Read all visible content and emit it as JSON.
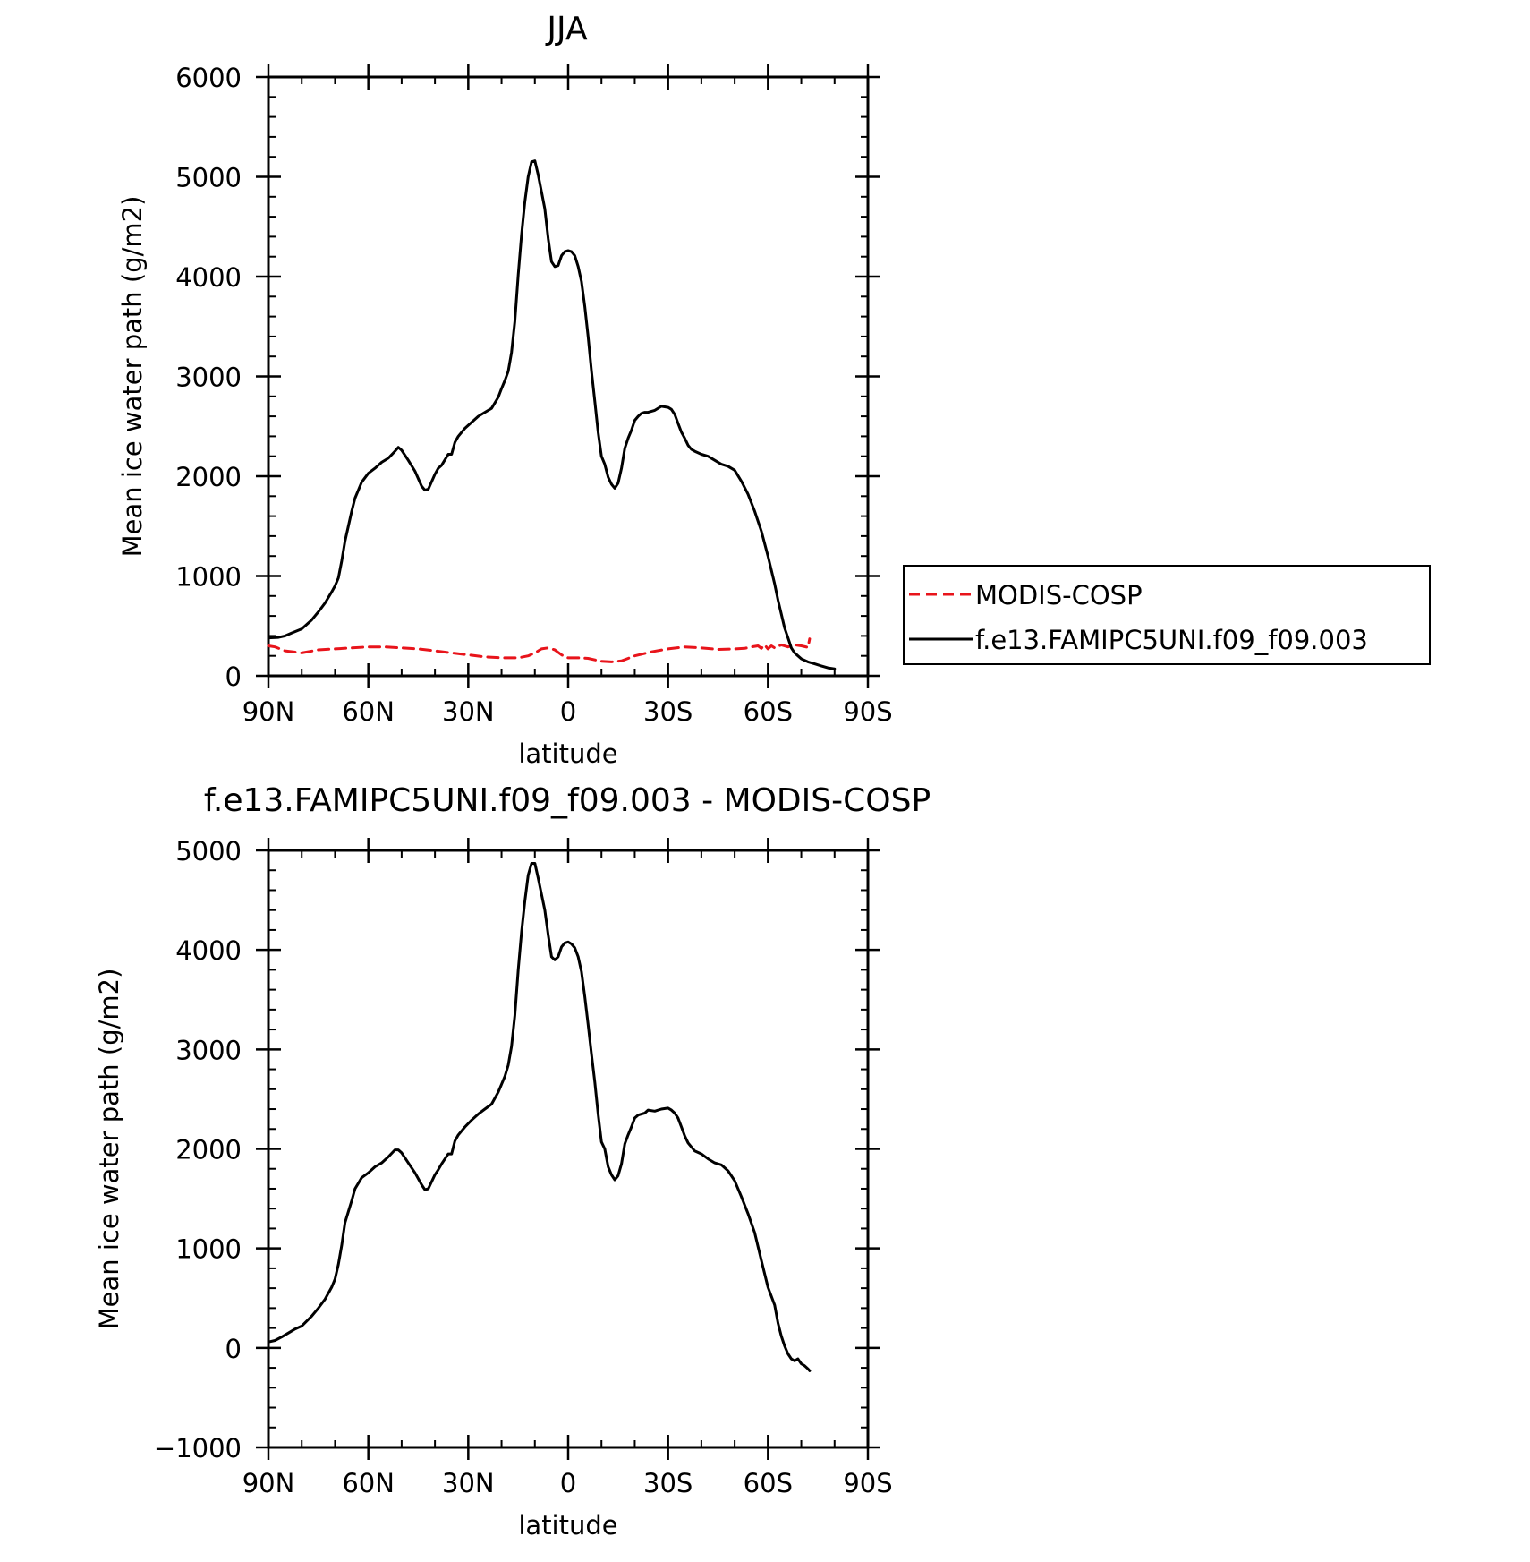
{
  "chart_data": [
    {
      "type": "line",
      "title": "JJA",
      "xlabel": "latitude",
      "ylabel": "Mean ice water path (g/m2)",
      "xlim": [
        90,
        -90
      ],
      "ylim": [
        0,
        6000
      ],
      "x_ticks": [
        90,
        60,
        30,
        0,
        -30,
        -60,
        -90
      ],
      "x_tick_labels": [
        "90N",
        "60N",
        "30N",
        "0",
        "30S",
        "60S",
        "90S"
      ],
      "y_ticks": [
        0,
        1000,
        2000,
        3000,
        4000,
        5000,
        6000
      ],
      "y_tick_labels": [
        "0",
        "1000",
        "2000",
        "3000",
        "4000",
        "5000",
        "6000"
      ],
      "legend": {
        "placement": "right",
        "entries": [
          "MODIS-COSP",
          "f.e13.FAMIPC5UNI.f09_f09.003"
        ]
      },
      "series": [
        {
          "name": "MODIS-COSP",
          "color": "#e8141b",
          "dash": "dashed",
          "x": [
            90,
            88,
            85,
            80,
            75,
            70,
            65,
            60,
            55,
            50,
            45,
            40,
            35,
            30,
            25,
            20,
            15,
            12,
            10,
            8,
            6,
            4,
            2,
            0,
            -3,
            -6,
            -10,
            -13,
            -16,
            -20,
            -25,
            -30,
            -35,
            -40,
            -45,
            -50,
            -53,
            -55,
            -57,
            -58,
            -59,
            -60,
            -61,
            -62,
            -64,
            -66,
            -68,
            -70,
            -72,
            -72.5
          ],
          "y": [
            300,
            290,
            250,
            230,
            260,
            270,
            280,
            290,
            290,
            280,
            270,
            250,
            230,
            210,
            190,
            180,
            180,
            200,
            230,
            270,
            280,
            260,
            210,
            180,
            180,
            175,
            145,
            140,
            150,
            200,
            240,
            270,
            290,
            280,
            265,
            270,
            275,
            290,
            300,
            275,
            310,
            270,
            300,
            280,
            310,
            290,
            310,
            300,
            285,
            370
          ]
        },
        {
          "name": "f.e13.FAMIPC5UNI.f09_f09.003",
          "color": "#000000",
          "dash": "solid",
          "x": [
            90,
            87,
            85,
            83,
            80,
            77,
            75,
            73,
            71,
            70,
            69,
            68,
            67,
            65,
            64,
            62,
            60,
            58,
            56,
            54,
            52,
            51,
            50,
            48,
            46,
            44,
            43,
            42,
            40,
            39,
            38,
            36,
            35,
            34,
            33,
            31,
            29,
            27,
            25,
            23,
            21,
            20,
            19,
            18,
            17,
            16,
            15,
            14,
            13,
            12,
            11,
            10,
            9,
            8,
            7,
            6,
            5,
            4,
            3,
            2,
            1,
            0,
            -1,
            -2,
            -3,
            -4,
            -5,
            -6,
            -7,
            -8,
            -9,
            -10,
            -11,
            -12,
            -13,
            -14,
            -15,
            -16,
            -17,
            -18,
            -19,
            -20,
            -21,
            -22,
            -23,
            -24,
            -26,
            -28,
            -30,
            -31,
            -32,
            -33,
            -34,
            -35,
            -36,
            -37,
            -38,
            -40,
            -42,
            -44,
            -46,
            -48,
            -50,
            -52,
            -54,
            -56,
            -58,
            -60,
            -62,
            -63,
            -64,
            -65,
            -66,
            -67,
            -68,
            -70,
            -72,
            -74,
            -76,
            -78,
            -80
          ],
          "y": [
            380,
            385,
            400,
            430,
            470,
            560,
            640,
            730,
            840,
            900,
            980,
            1150,
            1350,
            1650,
            1780,
            1940,
            2030,
            2080,
            2140,
            2180,
            2250,
            2290,
            2260,
            2160,
            2050,
            1900,
            1860,
            1870,
            2020,
            2080,
            2110,
            2220,
            2220,
            2340,
            2400,
            2480,
            2540,
            2600,
            2640,
            2680,
            2790,
            2880,
            2960,
            3050,
            3240,
            3550,
            4020,
            4420,
            4750,
            5000,
            5150,
            5160,
            5020,
            4850,
            4680,
            4380,
            4150,
            4100,
            4110,
            4210,
            4250,
            4260,
            4250,
            4210,
            4100,
            3950,
            3700,
            3400,
            3050,
            2750,
            2440,
            2200,
            2120,
            1990,
            1920,
            1880,
            1930,
            2080,
            2280,
            2380,
            2460,
            2560,
            2600,
            2630,
            2640,
            2640,
            2660,
            2700,
            2690,
            2670,
            2620,
            2530,
            2440,
            2380,
            2310,
            2270,
            2250,
            2220,
            2200,
            2160,
            2120,
            2100,
            2060,
            1950,
            1820,
            1650,
            1450,
            1200,
            920,
            760,
            620,
            480,
            380,
            280,
            230,
            170,
            140,
            120,
            100,
            80,
            70
          ]
        }
      ]
    },
    {
      "type": "line",
      "title": "f.e13.FAMIPC5UNI.f09_f09.003 - MODIS-COSP",
      "xlabel": "latitude",
      "ylabel": "Mean ice water path (g/m2)",
      "xlim": [
        90,
        -90
      ],
      "ylim": [
        -1000,
        5000
      ],
      "x_ticks": [
        90,
        60,
        30,
        0,
        -30,
        -60,
        -90
      ],
      "x_tick_labels": [
        "90N",
        "60N",
        "30N",
        "0",
        "30S",
        "60S",
        "90S"
      ],
      "y_ticks": [
        -1000,
        0,
        1000,
        2000,
        3000,
        4000,
        5000
      ],
      "y_tick_labels": [
        "−1000",
        "0",
        "1000",
        "2000",
        "3000",
        "4000",
        "5000"
      ],
      "series": [
        {
          "color": "#000000",
          "dash": "solid",
          "x": [
            90,
            88,
            86,
            84,
            82,
            80,
            77,
            75,
            73,
            71,
            70,
            69,
            68,
            67,
            65,
            64,
            62,
            60,
            58,
            56,
            54,
            52,
            51,
            50,
            48,
            46,
            44,
            43,
            42,
            40,
            39,
            38,
            36,
            35,
            34,
            33,
            31,
            29,
            27,
            25,
            23,
            21,
            20,
            19,
            18,
            17,
            16,
            15,
            14,
            13,
            12,
            11,
            10,
            9,
            8,
            7,
            6,
            5,
            4,
            3,
            2,
            1,
            0,
            -1,
            -2,
            -3,
            -4,
            -5,
            -6,
            -7,
            -8,
            -9,
            -10,
            -11,
            -12,
            -13,
            -14,
            -15,
            -16,
            -17,
            -18,
            -19,
            -20,
            -21,
            -22,
            -23,
            -24,
            -26,
            -28,
            -30,
            -31,
            -32,
            -33,
            -34,
            -35,
            -36,
            -37,
            -38,
            -40,
            -42,
            -44,
            -46,
            -48,
            -50,
            -52,
            -54,
            -56,
            -58,
            -60,
            -62,
            -63,
            -64,
            -65,
            -66,
            -67,
            -68,
            -69,
            -70,
            -71,
            -72,
            -72.5
          ],
          "y": [
            60,
            75,
            110,
            150,
            190,
            220,
            320,
            400,
            490,
            610,
            690,
            840,
            1030,
            1260,
            1480,
            1600,
            1710,
            1760,
            1820,
            1860,
            1920,
            1990,
            1990,
            1960,
            1860,
            1760,
            1640,
            1590,
            1600,
            1740,
            1790,
            1850,
            1950,
            1950,
            2080,
            2140,
            2220,
            2290,
            2350,
            2400,
            2450,
            2570,
            2650,
            2730,
            2840,
            3030,
            3340,
            3800,
            4180,
            4490,
            4750,
            4870,
            4870,
            4720,
            4560,
            4400,
            4150,
            3930,
            3900,
            3930,
            4030,
            4070,
            4080,
            4060,
            4020,
            3930,
            3780,
            3530,
            3250,
            2950,
            2670,
            2350,
            2070,
            2000,
            1820,
            1740,
            1690,
            1730,
            1850,
            2050,
            2140,
            2220,
            2310,
            2340,
            2350,
            2360,
            2390,
            2380,
            2400,
            2410,
            2390,
            2360,
            2310,
            2220,
            2130,
            2060,
            2020,
            1980,
            1950,
            1900,
            1860,
            1840,
            1780,
            1680,
            1520,
            1350,
            1160,
            880,
            610,
            430,
            250,
            120,
            20,
            -60,
            -110,
            -130,
            -110,
            -160,
            -180,
            -210,
            -230
          ]
        }
      ]
    }
  ]
}
